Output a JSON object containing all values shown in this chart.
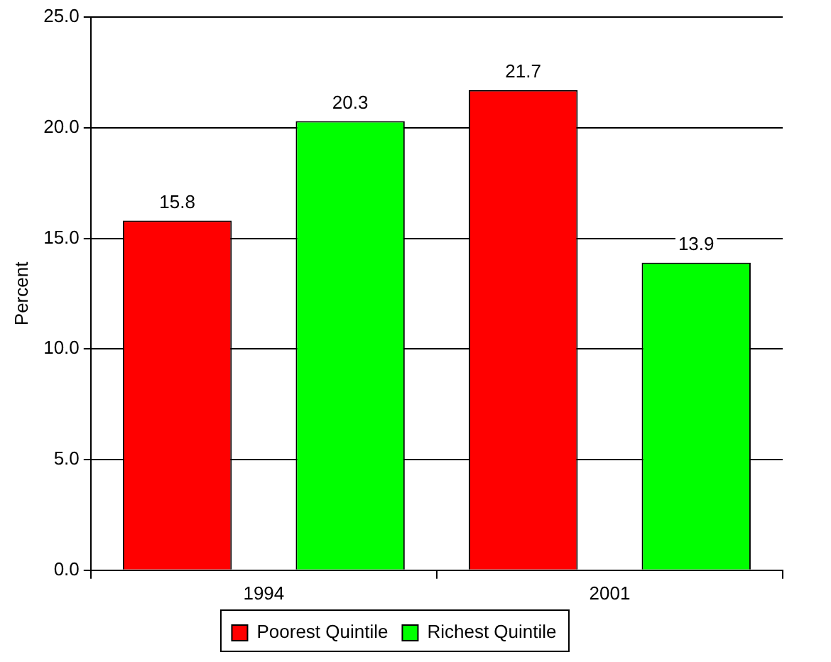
{
  "chart_data": {
    "type": "bar",
    "ylabel": "Percent",
    "categories": [
      "1994",
      "2001"
    ],
    "series": [
      {
        "name": "Poorest Quintile",
        "color": "#ff0000",
        "values": [
          15.8,
          21.7
        ]
      },
      {
        "name": "Richest Quintile",
        "color": "#00ff00",
        "values": [
          20.3,
          13.9
        ]
      }
    ],
    "ylim": [
      0,
      25
    ],
    "yticks": [
      {
        "value": 0,
        "label": "0.0"
      },
      {
        "value": 5,
        "label": "5.0"
      },
      {
        "value": 10,
        "label": "10.0"
      },
      {
        "value": 15,
        "label": "15.0"
      },
      {
        "value": 20,
        "label": "20.0"
      },
      {
        "value": 25,
        "label": "25.0"
      }
    ],
    "grid": "y",
    "legend": "bottom",
    "data_labels": true
  }
}
